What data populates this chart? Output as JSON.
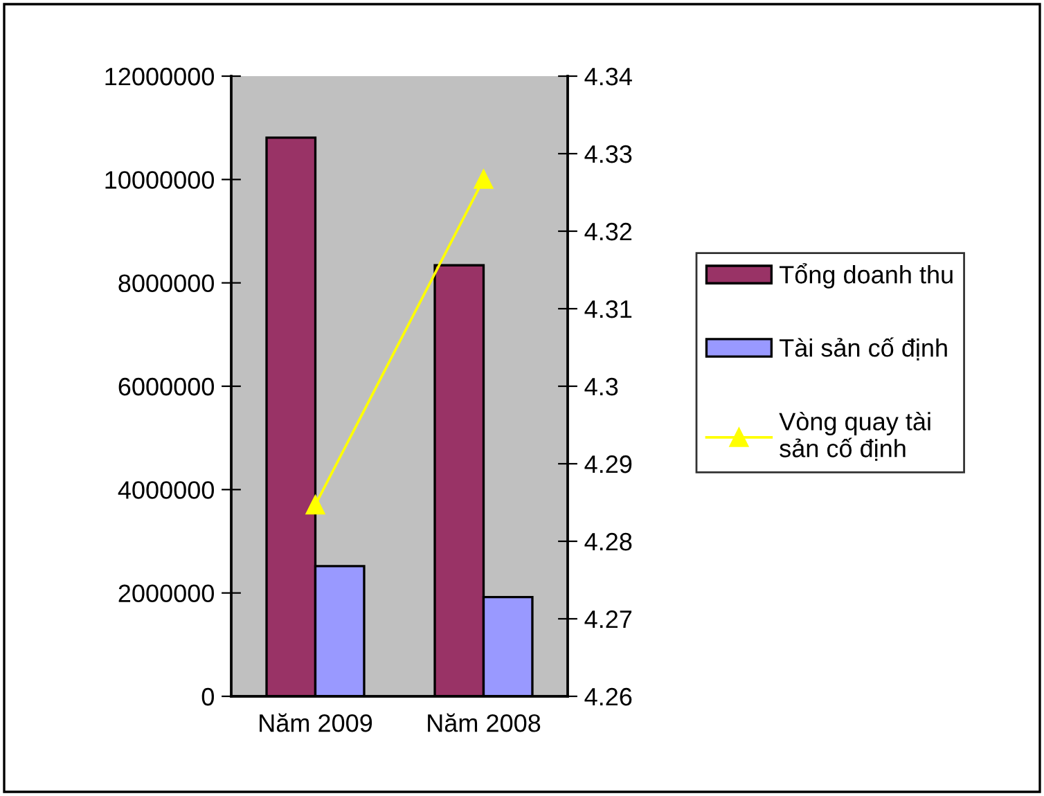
{
  "chart_data": {
    "type": "bar",
    "categories": [
      "Năm 2009",
      "Năm 2008"
    ],
    "series": [
      {
        "name": "Tổng doanh thu",
        "color": "#993366",
        "values": [
          10810000,
          8340000
        ]
      },
      {
        "name": "Tài sản cố định",
        "color": "#9999ff",
        "values": [
          2520000,
          1920000
        ]
      },
      {
        "name": "Vòng quay tài\nsản cố định",
        "type": "line",
        "axis": "y2",
        "color": "#ffff00",
        "marker": "triangle",
        "values": [
          4.2847,
          4.3267
        ]
      }
    ],
    "ylim": [
      0,
      12000000
    ],
    "yticks": [
      0,
      2000000,
      4000000,
      6000000,
      8000000,
      10000000,
      12000000
    ],
    "y2lim": [
      4.26,
      4.34
    ],
    "y2ticks": [
      4.26,
      4.27,
      4.28,
      4.29,
      {
        "value": 4.3,
        "label": "4.3"
      },
      4.31,
      4.32,
      4.33,
      4.34
    ],
    "grid": false,
    "legend": "right"
  }
}
